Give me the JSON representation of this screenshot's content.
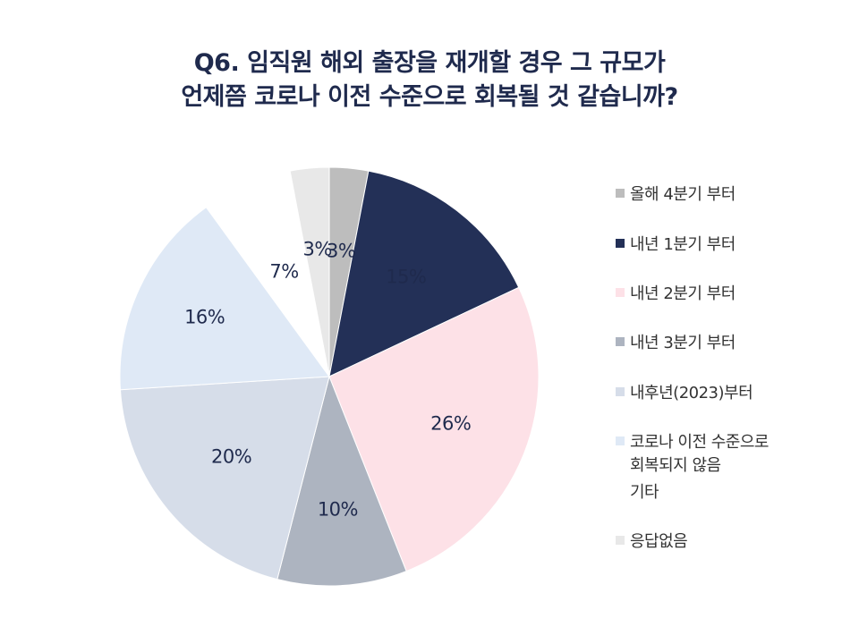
{
  "title": {
    "line1": "Q6. 임직원 해외 출장을 재개할 경우 그 규모가",
    "line2": "언제쯤 코로나 이전 수준으로 회복될 것 같습니까?"
  },
  "chart_data": {
    "type": "pie",
    "title": "Q6. 임직원 해외 출장을 재개할 경우 그 규모가 언제쯤 코로나 이전 수준으로 회복될 것 같습니까?",
    "legend_position": "right",
    "start_angle": "12 o'clock, clockwise",
    "slices": [
      {
        "label": "올해 4분기 부터",
        "value": 3,
        "display": "3%",
        "color": "#bdbdbd"
      },
      {
        "label": "내년 1분기 부터",
        "value": 15,
        "display": "15%",
        "color": "#233057"
      },
      {
        "label": "내년 2분기 부터",
        "value": 26,
        "display": "26%",
        "color": "#fde1e7"
      },
      {
        "label": "내년 3분기 부터",
        "value": 10,
        "display": "10%",
        "color": "#adb4c0"
      },
      {
        "label": "내후년(2023)부터",
        "value": 20,
        "display": "20%",
        "color": "#d6dde9"
      },
      {
        "label": "코로나 이전 수준으로\n회복되지 않음",
        "value": 16,
        "display": "16%",
        "color": "#dfe9f6"
      },
      {
        "label": "기타",
        "value": 7,
        "display": "7%",
        "color": "#ffffff"
      },
      {
        "label": "응답없음",
        "value": 3,
        "display": "3%",
        "color": "#e8e8e8"
      }
    ]
  }
}
